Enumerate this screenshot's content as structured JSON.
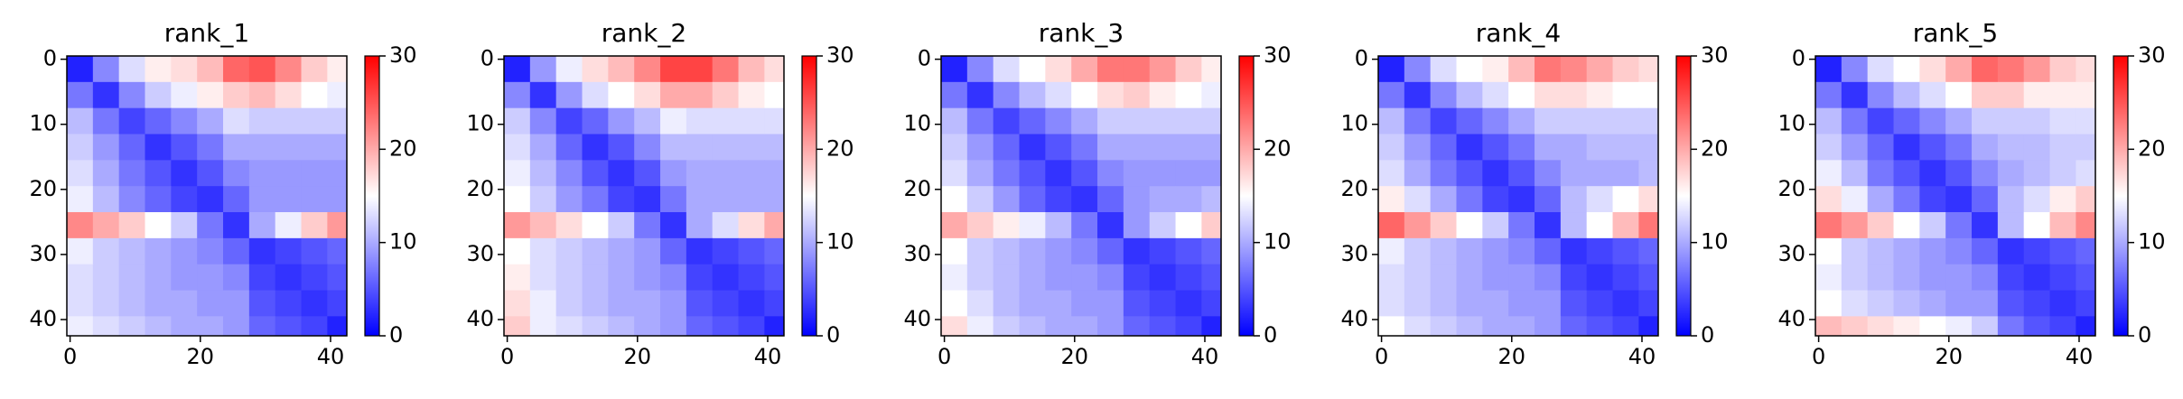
{
  "chart_data": [
    {
      "type": "heatmap",
      "title": "rank_1",
      "colormap": [
        "#0000ff",
        "#ffffff",
        "#ff0000"
      ],
      "clim": [
        0,
        30
      ],
      "cticks": [
        0,
        10,
        20,
        30
      ],
      "xlim": [
        -0.5,
        42.5
      ],
      "ylim": [
        42.5,
        -0.5
      ],
      "xticks": [
        0,
        20,
        40
      ],
      "yticks": [
        0,
        10,
        20,
        30,
        40
      ],
      "x_edges": [
        -0.5,
        3.5,
        7.5,
        11.5,
        15.5,
        19.5,
        23.5,
        27.5,
        31.5,
        35.5,
        39.5,
        42.5
      ],
      "y_edges": [
        -0.5,
        3.5,
        7.5,
        11.5,
        15.5,
        19.5,
        23.5,
        27.5,
        31.5,
        35.5,
        39.5,
        42.5
      ],
      "values": [
        [
          2,
          8,
          13,
          16,
          17,
          19,
          24,
          25,
          22,
          18,
          16
        ],
        [
          7,
          3,
          8,
          12,
          14,
          16,
          18,
          19,
          17,
          15,
          14
        ],
        [
          11,
          7,
          4,
          6,
          8,
          10,
          13,
          12,
          12,
          12,
          12
        ],
        [
          12,
          9,
          6,
          3,
          5,
          7,
          10,
          10,
          10,
          10,
          10
        ],
        [
          13,
          10,
          7,
          5,
          3,
          5,
          8,
          9,
          9,
          9,
          9
        ],
        [
          14,
          11,
          8,
          6,
          4,
          3,
          6,
          9,
          9,
          9,
          9
        ],
        [
          22,
          20,
          18,
          15,
          12,
          7,
          3,
          10,
          14,
          18,
          21
        ],
        [
          14,
          12,
          11,
          10,
          9,
          8,
          6,
          3,
          4,
          5,
          6
        ],
        [
          13,
          12,
          11,
          10,
          9,
          9,
          8,
          4,
          3,
          4,
          5
        ],
        [
          13,
          12,
          11,
          10,
          10,
          9,
          9,
          5,
          4,
          3,
          4
        ],
        [
          14,
          13,
          12,
          11,
          10,
          10,
          9,
          6,
          5,
          4,
          2
        ]
      ]
    },
    {
      "type": "heatmap",
      "title": "rank_2",
      "colormap": [
        "#0000ff",
        "#ffffff",
        "#ff0000"
      ],
      "clim": [
        0,
        30
      ],
      "cticks": [
        0,
        10,
        20,
        30
      ],
      "xlim": [
        -0.5,
        42.5
      ],
      "ylim": [
        42.5,
        -0.5
      ],
      "xticks": [
        0,
        20,
        40
      ],
      "yticks": [
        0,
        10,
        20,
        30,
        40
      ],
      "x_edges": [
        -0.5,
        3.5,
        7.5,
        11.5,
        15.5,
        19.5,
        23.5,
        27.5,
        31.5,
        35.5,
        39.5,
        42.5
      ],
      "y_edges": [
        -0.5,
        3.5,
        7.5,
        11.5,
        15.5,
        19.5,
        23.5,
        27.5,
        31.5,
        35.5,
        39.5,
        42.5
      ],
      "values": [
        [
          2,
          9,
          14,
          17,
          19,
          22,
          26,
          26,
          23,
          19,
          17
        ],
        [
          8,
          3,
          9,
          13,
          15,
          17,
          20,
          20,
          18,
          16,
          15
        ],
        [
          12,
          8,
          4,
          6,
          9,
          11,
          14,
          13,
          13,
          13,
          13
        ],
        [
          13,
          10,
          6,
          3,
          5,
          8,
          11,
          11,
          11,
          11,
          11
        ],
        [
          14,
          11,
          8,
          5,
          3,
          5,
          9,
          10,
          10,
          10,
          10
        ],
        [
          15,
          12,
          9,
          7,
          4,
          3,
          7,
          10,
          10,
          10,
          10
        ],
        [
          21,
          19,
          17,
          15,
          12,
          7,
          3,
          10,
          13,
          17,
          20
        ],
        [
          15,
          13,
          12,
          11,
          10,
          9,
          6,
          3,
          4,
          5,
          6
        ],
        [
          16,
          13,
          12,
          11,
          10,
          9,
          8,
          4,
          3,
          4,
          5
        ],
        [
          17,
          14,
          12,
          11,
          10,
          10,
          9,
          5,
          4,
          3,
          4
        ],
        [
          18,
          14,
          13,
          12,
          11,
          10,
          9,
          6,
          5,
          4,
          2
        ]
      ]
    },
    {
      "type": "heatmap",
      "title": "rank_3",
      "colormap": [
        "#0000ff",
        "#ffffff",
        "#ff0000"
      ],
      "clim": [
        0,
        30
      ],
      "cticks": [
        0,
        10,
        20,
        30
      ],
      "xlim": [
        -0.5,
        42.5
      ],
      "ylim": [
        42.5,
        -0.5
      ],
      "xticks": [
        0,
        20,
        40
      ],
      "yticks": [
        0,
        10,
        20,
        30,
        40
      ],
      "x_edges": [
        -0.5,
        3.5,
        7.5,
        11.5,
        15.5,
        19.5,
        23.5,
        27.5,
        31.5,
        35.5,
        39.5,
        42.5
      ],
      "y_edges": [
        -0.5,
        3.5,
        7.5,
        11.5,
        15.5,
        19.5,
        23.5,
        27.5,
        31.5,
        35.5,
        39.5,
        42.5
      ],
      "values": [
        [
          2,
          8,
          13,
          15,
          17,
          20,
          23,
          23,
          21,
          18,
          16
        ],
        [
          7,
          3,
          8,
          11,
          13,
          15,
          17,
          18,
          16,
          15,
          14
        ],
        [
          11,
          7,
          4,
          6,
          8,
          10,
          12,
          12,
          12,
          12,
          12
        ],
        [
          12,
          9,
          6,
          3,
          5,
          7,
          10,
          10,
          10,
          10,
          10
        ],
        [
          13,
          10,
          7,
          5,
          3,
          5,
          8,
          9,
          9,
          9,
          9
        ],
        [
          15,
          12,
          9,
          6,
          4,
          3,
          6,
          9,
          10,
          10,
          11
        ],
        [
          20,
          18,
          16,
          14,
          11,
          7,
          3,
          9,
          12,
          15,
          18
        ],
        [
          15,
          12,
          11,
          10,
          9,
          8,
          6,
          3,
          4,
          5,
          6
        ],
        [
          14,
          12,
          11,
          10,
          9,
          9,
          8,
          4,
          3,
          4,
          5
        ],
        [
          15,
          13,
          11,
          10,
          10,
          9,
          9,
          5,
          4,
          3,
          4
        ],
        [
          17,
          14,
          12,
          11,
          10,
          10,
          9,
          6,
          5,
          4,
          2
        ]
      ]
    },
    {
      "type": "heatmap",
      "title": "rank_4",
      "colormap": [
        "#0000ff",
        "#ffffff",
        "#ff0000"
      ],
      "clim": [
        0,
        30
      ],
      "cticks": [
        0,
        10,
        20,
        30
      ],
      "xlim": [
        -0.5,
        42.5
      ],
      "ylim": [
        42.5,
        -0.5
      ],
      "xticks": [
        0,
        20,
        40
      ],
      "yticks": [
        0,
        10,
        20,
        30,
        40
      ],
      "x_edges": [
        -0.5,
        3.5,
        7.5,
        11.5,
        15.5,
        19.5,
        23.5,
        27.5,
        31.5,
        35.5,
        39.5,
        42.5
      ],
      "y_edges": [
        -0.5,
        3.5,
        7.5,
        11.5,
        15.5,
        19.5,
        23.5,
        27.5,
        31.5,
        35.5,
        39.5,
        42.5
      ],
      "values": [
        [
          2,
          8,
          13,
          15,
          16,
          19,
          23,
          22,
          20,
          18,
          17
        ],
        [
          7,
          3,
          8,
          11,
          13,
          15,
          17,
          17,
          16,
          15,
          15
        ],
        [
          11,
          7,
          4,
          6,
          8,
          10,
          12,
          12,
          12,
          12,
          12
        ],
        [
          12,
          9,
          6,
          3,
          5,
          7,
          10,
          10,
          11,
          11,
          11
        ],
        [
          13,
          10,
          7,
          5,
          3,
          5,
          8,
          10,
          10,
          10,
          11
        ],
        [
          16,
          13,
          10,
          7,
          4,
          3,
          6,
          11,
          13,
          15,
          17
        ],
        [
          24,
          21,
          18,
          15,
          12,
          7,
          3,
          11,
          15,
          19,
          23
        ],
        [
          14,
          12,
          11,
          10,
          9,
          8,
          6,
          3,
          4,
          5,
          6
        ],
        [
          13,
          12,
          11,
          10,
          9,
          9,
          8,
          4,
          3,
          4,
          5
        ],
        [
          13,
          12,
          11,
          10,
          10,
          9,
          9,
          5,
          4,
          3,
          4
        ],
        [
          15,
          13,
          12,
          11,
          10,
          10,
          9,
          6,
          5,
          4,
          2
        ]
      ]
    },
    {
      "type": "heatmap",
      "title": "rank_5",
      "colormap": [
        "#0000ff",
        "#ffffff",
        "#ff0000"
      ],
      "clim": [
        0,
        30
      ],
      "cticks": [
        0,
        10,
        20,
        30
      ],
      "xlim": [
        -0.5,
        42.5
      ],
      "ylim": [
        42.5,
        -0.5
      ],
      "xticks": [
        0,
        20,
        40
      ],
      "yticks": [
        0,
        10,
        20,
        30,
        40
      ],
      "x_edges": [
        -0.5,
        3.5,
        7.5,
        11.5,
        15.5,
        19.5,
        23.5,
        27.5,
        31.5,
        35.5,
        39.5,
        42.5
      ],
      "y_edges": [
        -0.5,
        3.5,
        7.5,
        11.5,
        15.5,
        19.5,
        23.5,
        27.5,
        31.5,
        35.5,
        39.5,
        42.5
      ],
      "values": [
        [
          2,
          8,
          13,
          15,
          17,
          20,
          24,
          23,
          21,
          18,
          17
        ],
        [
          7,
          3,
          8,
          11,
          13,
          15,
          18,
          18,
          16,
          16,
          16
        ],
        [
          11,
          7,
          4,
          6,
          8,
          10,
          12,
          12,
          12,
          13,
          13
        ],
        [
          12,
          9,
          6,
          3,
          5,
          7,
          10,
          11,
          11,
          12,
          12
        ],
        [
          14,
          11,
          7,
          5,
          3,
          5,
          8,
          10,
          11,
          12,
          13
        ],
        [
          17,
          14,
          10,
          7,
          4,
          3,
          6,
          11,
          13,
          16,
          18
        ],
        [
          23,
          21,
          18,
          15,
          12,
          7,
          3,
          11,
          15,
          19,
          22
        ],
        [
          15,
          12,
          11,
          10,
          9,
          8,
          6,
          3,
          4,
          5,
          6
        ],
        [
          14,
          12,
          11,
          10,
          9,
          9,
          8,
          4,
          3,
          4,
          5
        ],
        [
          15,
          13,
          12,
          11,
          10,
          9,
          9,
          5,
          4,
          3,
          4
        ],
        [
          19,
          18,
          17,
          16,
          15,
          14,
          12,
          7,
          5,
          4,
          2
        ]
      ]
    }
  ]
}
